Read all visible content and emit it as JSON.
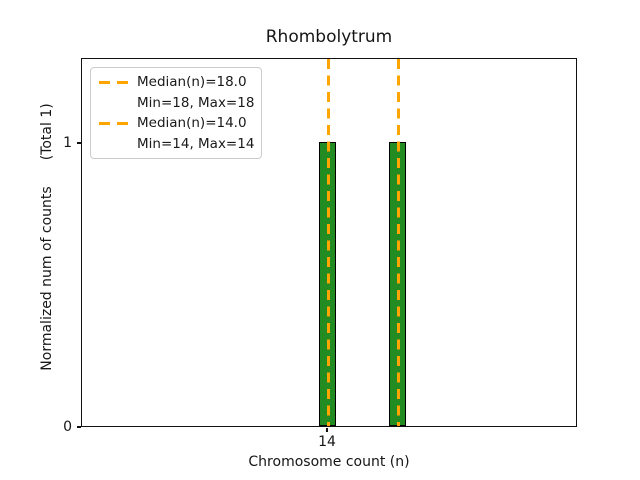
{
  "chart_data": {
    "type": "bar",
    "title": "Rhombolytrum",
    "xlabel": "Chromosome count (n)",
    "ylabel": "Normalized num of counts      (Total 1)",
    "ylabel_parts": [
      "Normalized num of counts",
      "(Total 1)"
    ],
    "total_counts": 1,
    "categories": [
      14,
      18
    ],
    "values": [
      1,
      1
    ],
    "xtick_labels": [
      "14"
    ],
    "ytick_labels": [
      "0",
      "1"
    ],
    "xlim": [
      0,
      28.3
    ],
    "ylim": [
      0,
      1.3
    ],
    "grid": false,
    "legend_position": "upper-left",
    "bar_color": "#228B22",
    "bar_edge_color": "#000000",
    "median_lines": [
      {
        "value": 18.0,
        "min": 18,
        "max": 18,
        "label": "Median(n)=18.0",
        "sublabel": "Min=18, Max=18",
        "color": "#FFA500",
        "linestyle": "dashed"
      },
      {
        "value": 14.0,
        "min": 14,
        "max": 14,
        "label": "Median(n)=14.0",
        "sublabel": "Min=14, Max=14",
        "color": "#FFA500",
        "linestyle": "dashed"
      }
    ]
  },
  "colors": {
    "bar": "#228B22",
    "bar_edge": "#000000",
    "median_line": "#FFA500",
    "text": "#1a1a1a",
    "legend_border": "#cccccc",
    "background": "#ffffff"
  }
}
